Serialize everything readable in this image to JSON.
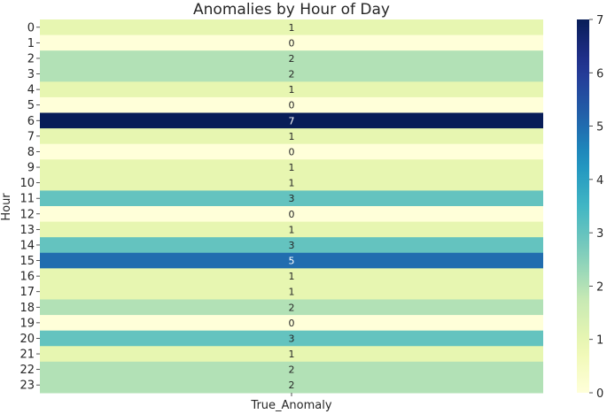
{
  "chart_data": {
    "type": "heatmap",
    "title": "Anomalies by Hour of Day",
    "xlabel": "True_Anomaly",
    "ylabel": "Hour",
    "columns": [
      ""
    ],
    "rows": [
      "0",
      "1",
      "2",
      "3",
      "4",
      "5",
      "6",
      "7",
      "8",
      "9",
      "10",
      "11",
      "12",
      "13",
      "14",
      "15",
      "16",
      "17",
      "18",
      "19",
      "20",
      "21",
      "22",
      "23"
    ],
    "values": [
      1,
      0,
      2,
      2,
      1,
      0,
      7,
      1,
      0,
      1,
      1,
      3,
      0,
      1,
      3,
      5,
      1,
      1,
      2,
      0,
      3,
      1,
      2,
      2
    ],
    "colorbar": {
      "colormap": "YlGnBu",
      "range": [
        0,
        7
      ],
      "ticks": [
        "0",
        "1",
        "2",
        "3",
        "4",
        "5",
        "6",
        "7"
      ]
    }
  }
}
